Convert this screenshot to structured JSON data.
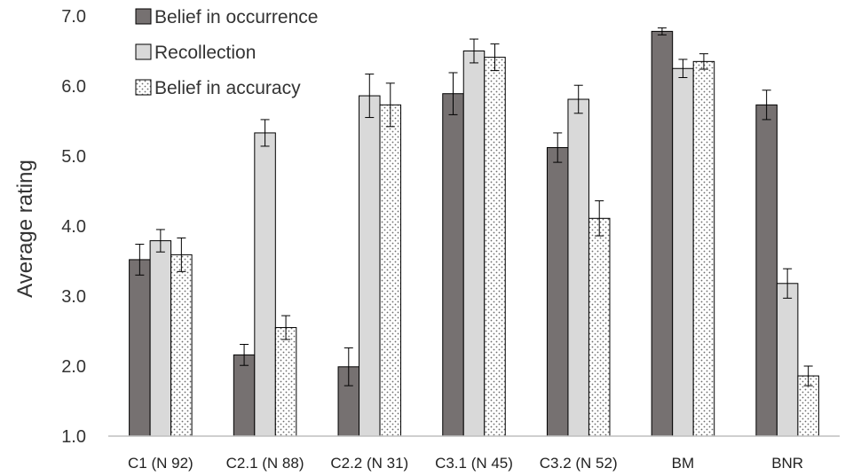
{
  "chart_data": {
    "type": "bar",
    "title": "",
    "xlabel": "",
    "ylabel": "Average rating",
    "ylim": [
      1.0,
      7.0
    ],
    "yticks": [
      "1.0",
      "2.0",
      "3.0",
      "4.0",
      "5.0",
      "6.0",
      "7.0"
    ],
    "grid": false,
    "legend_position": "top-left",
    "categories": [
      "C1 (N 92)",
      "C2.1 (N 88)",
      "C2.2 (N 31)",
      "C3.1 (N 45)",
      "C3.2 (N 52)",
      "BM",
      "BNR"
    ],
    "series": [
      {
        "name": "Belief in occurrence",
        "color": "#767171",
        "pattern": "solid",
        "values": [
          3.52,
          2.16,
          1.99,
          5.89,
          5.12,
          6.78,
          5.73
        ],
        "errors": [
          0.22,
          0.15,
          0.27,
          0.3,
          0.21,
          0.05,
          0.21
        ]
      },
      {
        "name": "Recollection",
        "color": "#d9d9d9",
        "pattern": "solid",
        "values": [
          3.79,
          5.33,
          5.86,
          6.5,
          5.81,
          6.25,
          3.18
        ],
        "errors": [
          0.16,
          0.19,
          0.31,
          0.17,
          0.2,
          0.13,
          0.21
        ]
      },
      {
        "name": "Belief in accuracy",
        "color": "#ffffff",
        "pattern": "dotted",
        "values": [
          3.59,
          2.55,
          5.73,
          6.41,
          4.11,
          6.35,
          1.86
        ],
        "errors": [
          0.24,
          0.17,
          0.31,
          0.19,
          0.25,
          0.11,
          0.14
        ]
      }
    ]
  }
}
